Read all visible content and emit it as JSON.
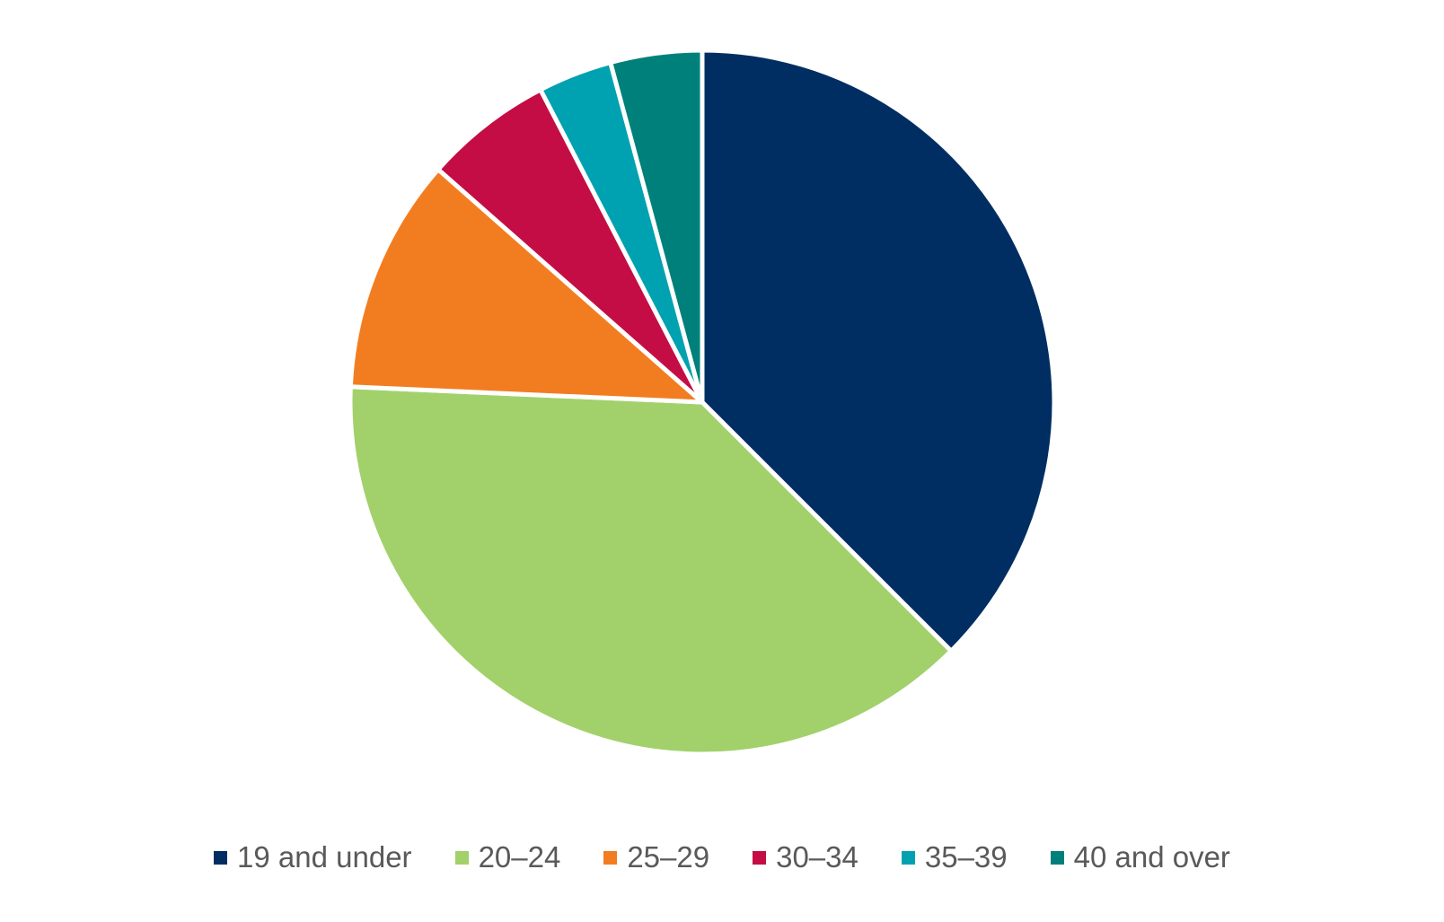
{
  "chart_data": {
    "type": "pie",
    "title": "",
    "legend_position": "bottom",
    "start_angle": "12 o'clock",
    "direction": "clockwise",
    "categories": [
      "19 and under",
      "20–24",
      "25–29",
      "30–34",
      "35–39",
      "40 and over"
    ],
    "values": [
      37.5,
      38.2,
      10.8,
      5.9,
      3.4,
      4.2
    ],
    "unit": "percent",
    "colors": [
      "#002E62",
      "#A2D16B",
      "#F27D21",
      "#C40D45",
      "#00A2B1",
      "#00807A"
    ],
    "slice_border_color": "#FFFFFF"
  }
}
